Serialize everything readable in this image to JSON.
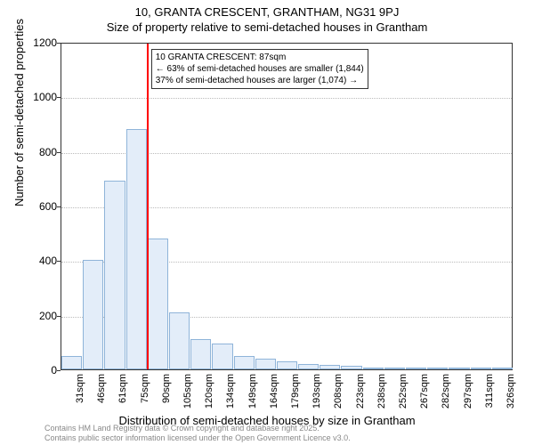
{
  "title_main": "10, GRANTA CRESCENT, GRANTHAM, NG31 9PJ",
  "title_sub": "Size of property relative to semi-detached houses in Grantham",
  "ylabel": "Number of semi-detached properties",
  "xlabel": "Distribution of semi-detached houses by size in Grantham",
  "chart": {
    "type": "histogram",
    "ylim": [
      0,
      1200
    ],
    "ytick_step": 200,
    "yticks": [
      0,
      200,
      400,
      600,
      800,
      1000,
      1200
    ],
    "categories": [
      "31sqm",
      "46sqm",
      "61sqm",
      "75sqm",
      "90sqm",
      "105sqm",
      "120sqm",
      "134sqm",
      "149sqm",
      "164sqm",
      "179sqm",
      "193sqm",
      "208sqm",
      "223sqm",
      "238sqm",
      "252sqm",
      "267sqm",
      "282sqm",
      "297sqm",
      "311sqm",
      "326sqm"
    ],
    "values": [
      50,
      400,
      690,
      880,
      480,
      210,
      110,
      95,
      50,
      40,
      30,
      20,
      15,
      12,
      5,
      4,
      3,
      0,
      2,
      0,
      2
    ],
    "bar_fill": "#e3edf9",
    "bar_border": "#8fb4d9",
    "grid_color": "#bbbbbb",
    "background_color": "#ffffff",
    "reference_line": {
      "x_index": 4,
      "color": "#ff0000",
      "width": 2
    }
  },
  "annotation": {
    "line1": "10 GRANTA CRESCENT: 87sqm",
    "line2": "← 63% of semi-detached houses are smaller (1,844)",
    "line3": "37% of semi-detached houses are larger (1,074) →"
  },
  "attribution": {
    "line1": "Contains HM Land Registry data © Crown copyright and database right 2025.",
    "line2": "Contains public sector information licensed under the Open Government Licence v3.0."
  }
}
